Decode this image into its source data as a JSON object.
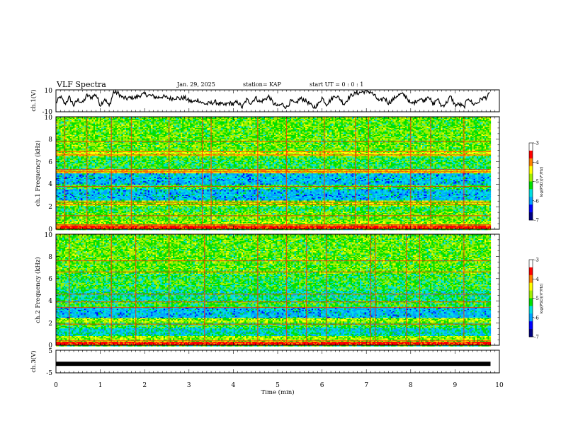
{
  "header": {
    "title": "VLF Spectra",
    "date": "Jan. 29, 2025",
    "station": "station= KAP",
    "start": "start UT =   0 : 0  : 1"
  },
  "colors": {
    "colormap": [
      "#000080",
      "#0000ff",
      "#00a0ff",
      "#00e0e0",
      "#00e000",
      "#a0f000",
      "#ffff00",
      "#ff8000",
      "#ff0000",
      "#ffffff"
    ]
  },
  "chart_data": [
    {
      "type": "line",
      "name": "ch1-waveform",
      "ylabel": "ch.1(V)",
      "ylim": [
        -10,
        10
      ],
      "yticks": [
        "10",
        "-10"
      ],
      "xlim": [
        0,
        10
      ],
      "series_points": [
        [
          0,
          -2
        ],
        [
          0.1,
          4
        ],
        [
          0.2,
          -3
        ],
        [
          0.3,
          3
        ],
        [
          0.4,
          -4
        ],
        [
          0.5,
          1
        ],
        [
          0.6,
          -2
        ],
        [
          0.7,
          5
        ],
        [
          0.8,
          3
        ],
        [
          0.9,
          6
        ],
        [
          1.0,
          -4
        ],
        [
          1.1,
          2
        ],
        [
          1.2,
          -5
        ],
        [
          1.3,
          8
        ],
        [
          1.4,
          7
        ],
        [
          1.5,
          3
        ],
        [
          1.6,
          2
        ],
        [
          1.7,
          3
        ],
        [
          1.8,
          3
        ],
        [
          1.9,
          5
        ],
        [
          2.0,
          6
        ],
        [
          2.1,
          5
        ],
        [
          2.2,
          4
        ],
        [
          2.3,
          3
        ],
        [
          2.4,
          4
        ],
        [
          2.5,
          3
        ],
        [
          2.6,
          2
        ],
        [
          2.7,
          3
        ],
        [
          2.8,
          2
        ],
        [
          2.9,
          3
        ],
        [
          3.0,
          0
        ],
        [
          3.1,
          -1
        ],
        [
          3.2,
          1
        ],
        [
          3.3,
          -2
        ],
        [
          3.4,
          -3
        ],
        [
          3.5,
          -2
        ],
        [
          3.6,
          -1
        ],
        [
          3.7,
          -3
        ],
        [
          3.8,
          -4
        ],
        [
          3.9,
          -2
        ],
        [
          4.0,
          -3
        ],
        [
          4.1,
          -1
        ],
        [
          4.2,
          -6
        ],
        [
          4.3,
          1
        ],
        [
          4.4,
          -2
        ],
        [
          4.5,
          3
        ],
        [
          4.6,
          -1
        ],
        [
          4.7,
          1
        ],
        [
          4.8,
          4
        ],
        [
          4.9,
          -2
        ],
        [
          5.0,
          -5
        ],
        [
          5.1,
          -3
        ],
        [
          5.2,
          -6
        ],
        [
          5.3,
          0
        ],
        [
          5.4,
          -3
        ],
        [
          5.5,
          2
        ],
        [
          5.6,
          1
        ],
        [
          5.7,
          -2
        ],
        [
          5.8,
          -6
        ],
        [
          5.9,
          -4
        ],
        [
          6.0,
          3
        ],
        [
          6.1,
          -3
        ],
        [
          6.2,
          1
        ],
        [
          6.3,
          5
        ],
        [
          6.4,
          2
        ],
        [
          6.5,
          -3
        ],
        [
          6.6,
          3
        ],
        [
          6.7,
          6
        ],
        [
          6.8,
          7
        ],
        [
          6.9,
          8
        ],
        [
          7.0,
          9
        ],
        [
          7.1,
          8
        ],
        [
          7.2,
          4
        ],
        [
          7.3,
          -1
        ],
        [
          7.4,
          3
        ],
        [
          7.5,
          -2
        ],
        [
          7.6,
          1
        ],
        [
          7.7,
          5
        ],
        [
          7.8,
          6
        ],
        [
          7.9,
          4
        ],
        [
          8.0,
          -3
        ],
        [
          8.1,
          -1
        ],
        [
          8.2,
          2
        ],
        [
          8.3,
          0
        ],
        [
          8.4,
          5
        ],
        [
          8.5,
          -4
        ],
        [
          8.6,
          2
        ],
        [
          8.7,
          -5
        ],
        [
          8.8,
          -2
        ],
        [
          8.9,
          4
        ],
        [
          9.0,
          -4
        ],
        [
          9.1,
          -3
        ],
        [
          9.2,
          -6
        ],
        [
          9.3,
          3
        ],
        [
          9.4,
          -3
        ],
        [
          9.5,
          -2
        ],
        [
          9.6,
          2
        ],
        [
          9.7,
          3
        ],
        [
          9.8,
          7
        ]
      ]
    },
    {
      "type": "heatmap",
      "name": "ch1-spectrogram",
      "ylabel": "ch.1 Frequency (kHz)",
      "ylim": [
        0,
        10
      ],
      "yticks": [
        "0",
        "2",
        "4",
        "6",
        "8",
        "10"
      ],
      "xlim": [
        0,
        10
      ],
      "data_x_end": 9.8,
      "colorbar": {
        "label": "log(PSD)(V²/Hz)",
        "range": [
          -7,
          -3
        ],
        "ticks": [
          "-3",
          "-4",
          "-5",
          "-6",
          "-7"
        ]
      },
      "bands": [
        {
          "from": 0,
          "to": 0.3,
          "level": 8
        },
        {
          "from": 0.3,
          "to": 0.7,
          "level": 5
        },
        {
          "from": 0.7,
          "to": 1.5,
          "level": 4.5
        },
        {
          "from": 1.5,
          "to": 2.1,
          "level": 4
        },
        {
          "from": 2.1,
          "to": 2.6,
          "level": 5
        },
        {
          "from": 2.6,
          "to": 3.6,
          "level": 2.5
        },
        {
          "from": 3.6,
          "to": 4.0,
          "level": 4
        },
        {
          "from": 4.0,
          "to": 5.0,
          "level": 2.5
        },
        {
          "from": 5.0,
          "to": 5.3,
          "level": 6
        },
        {
          "from": 5.3,
          "to": 6.5,
          "level": 4
        },
        {
          "from": 6.5,
          "to": 7.0,
          "level": 5.5
        },
        {
          "from": 7.0,
          "to": 10.0,
          "level": 4.5
        }
      ],
      "lines_khz": [
        0.4,
        1.2,
        2.2,
        2.4,
        3.8,
        5.1,
        5.3,
        6.6,
        6.9,
        7.8
      ],
      "vertical_events_min": [
        0.2,
        0.7,
        1.25,
        1.7,
        2.55,
        3.3,
        3.5,
        4.55,
        5.2,
        6.05,
        6.75,
        7.05,
        8.0,
        8.45,
        9.2
      ]
    },
    {
      "type": "heatmap",
      "name": "ch2-spectrogram",
      "ylabel": "ch.2 Frequency (kHz)",
      "ylim": [
        0,
        10
      ],
      "yticks": [
        "0",
        "2",
        "4",
        "6",
        "8",
        "10"
      ],
      "xlim": [
        0,
        10
      ],
      "data_x_end": 9.8,
      "colorbar": {
        "label": "log(PSD)(V²/Hz)",
        "range": [
          -7,
          -3
        ],
        "ticks": [
          "-3",
          "-4",
          "-5",
          "-6",
          "-7"
        ]
      },
      "bands": [
        {
          "from": 0,
          "to": 0.3,
          "level": 8
        },
        {
          "from": 0.3,
          "to": 0.8,
          "level": 5
        },
        {
          "from": 0.8,
          "to": 1.5,
          "level": 3
        },
        {
          "from": 1.5,
          "to": 2.1,
          "level": 4
        },
        {
          "from": 2.1,
          "to": 2.5,
          "level": 5
        },
        {
          "from": 2.5,
          "to": 3.4,
          "level": 2.5
        },
        {
          "from": 3.4,
          "to": 4.0,
          "level": 4
        },
        {
          "from": 4.0,
          "to": 5.0,
          "level": 3.5
        },
        {
          "from": 5.0,
          "to": 6.4,
          "level": 4
        },
        {
          "from": 6.4,
          "to": 7.0,
          "level": 4.5
        },
        {
          "from": 7.0,
          "to": 10.0,
          "level": 4.5
        }
      ],
      "lines_khz": [
        0.4,
        1.9,
        3.4,
        3.9,
        4.6,
        6.6,
        7.6
      ],
      "vertical_events_min": [
        0.3,
        1.25,
        1.8,
        2.55,
        3.35,
        4.55,
        5.2,
        5.65,
        6.1,
        7.1,
        7.2,
        7.9,
        8.2,
        9.2
      ]
    },
    {
      "type": "line",
      "name": "ch3-waveform",
      "ylabel": "ch.3(V)",
      "ylim": [
        -5,
        5
      ],
      "yticks": [
        "5",
        "-5"
      ],
      "xlim": [
        0,
        10
      ],
      "xlabel": "Time  (min)",
      "xticks": [
        "0",
        "1",
        "2",
        "3",
        "4",
        "5",
        "6",
        "7",
        "8",
        "9",
        "10"
      ],
      "value": -1,
      "x_end": 9.8
    }
  ]
}
